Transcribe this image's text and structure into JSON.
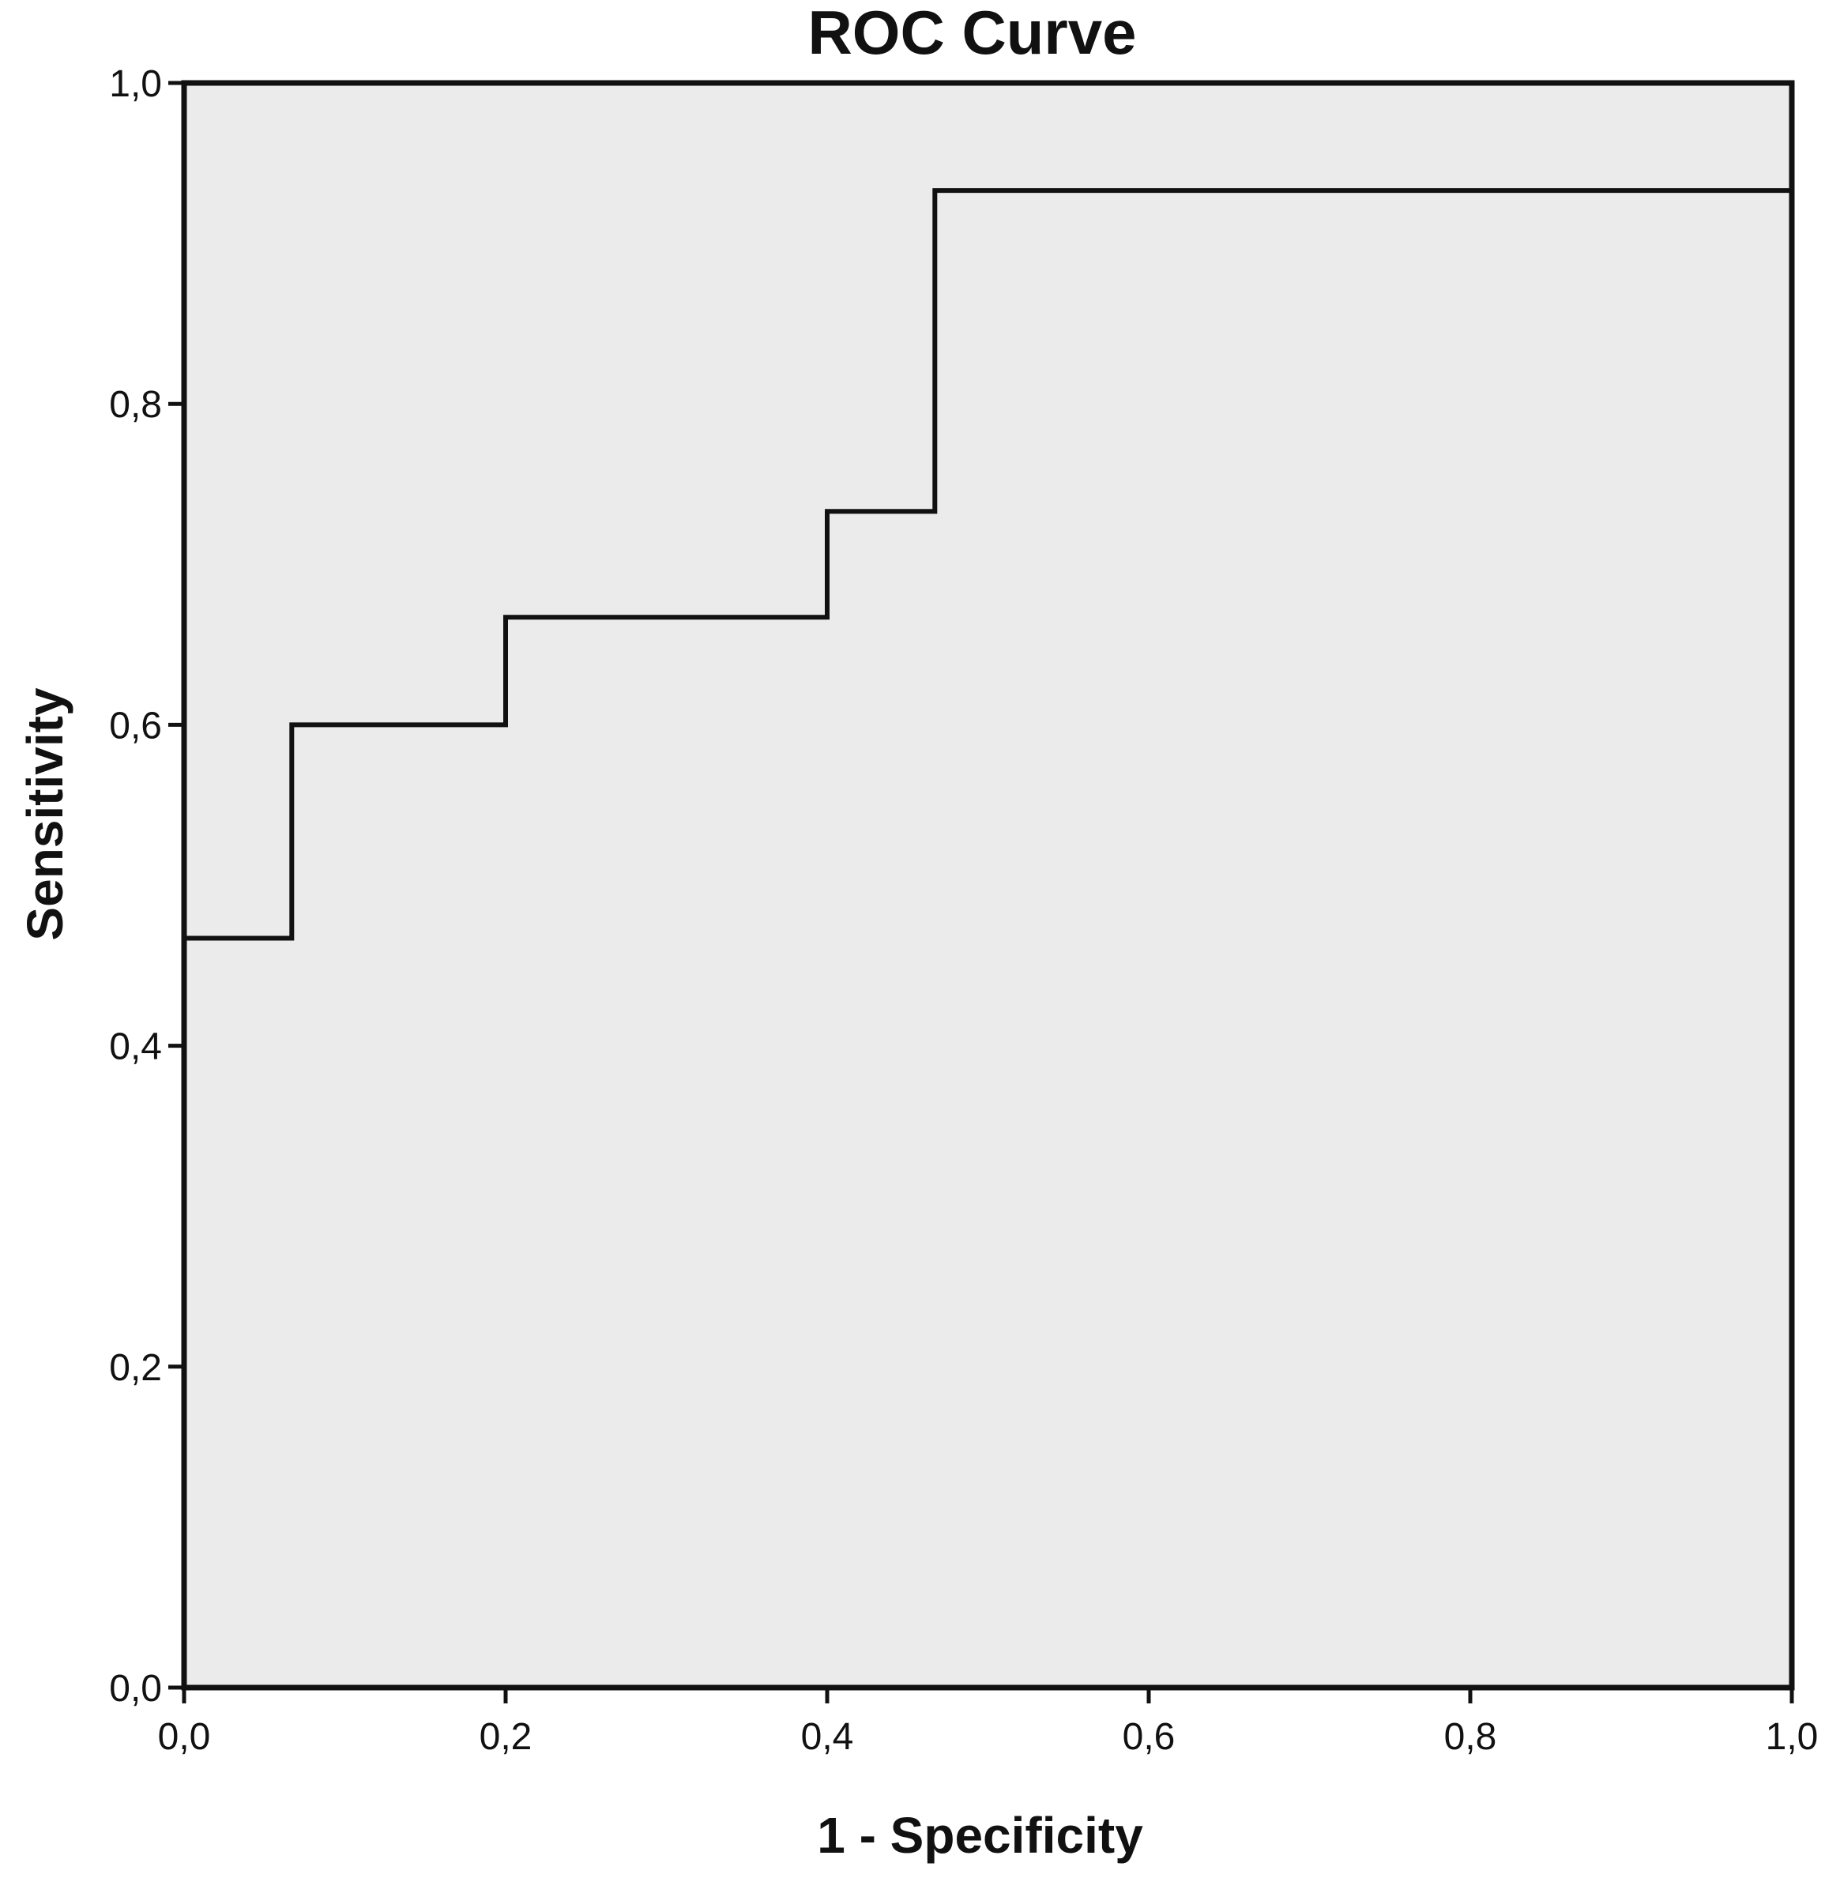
{
  "chart_data": {
    "type": "line",
    "title": "ROC Curve",
    "xlabel": "1 - Specificity",
    "ylabel": "Sensitivity",
    "xlim": [
      0,
      1
    ],
    "ylim": [
      0,
      1
    ],
    "x_ticks": [
      {
        "value": 0.0,
        "label": "0,0"
      },
      {
        "value": 0.2,
        "label": "0,2"
      },
      {
        "value": 0.4,
        "label": "0,4"
      },
      {
        "value": 0.6,
        "label": "0,6"
      },
      {
        "value": 0.8,
        "label": "0,8"
      },
      {
        "value": 1.0,
        "label": "1,0"
      }
    ],
    "y_ticks": [
      {
        "value": 0.0,
        "label": "0,0"
      },
      {
        "value": 0.2,
        "label": "0,2"
      },
      {
        "value": 0.4,
        "label": "0,4"
      },
      {
        "value": 0.6,
        "label": "0,6"
      },
      {
        "value": 0.8,
        "label": "0,8"
      },
      {
        "value": 1.0,
        "label": "1,0"
      }
    ],
    "grid": false,
    "legend": "none",
    "background_color": "#ebebeb",
    "line_color": "#111111",
    "series": [
      {
        "step": true,
        "points": [
          {
            "x": 0.0,
            "y": 0.0
          },
          {
            "x": 0.0,
            "y": 0.467
          },
          {
            "x": 0.067,
            "y": 0.467
          },
          {
            "x": 0.067,
            "y": 0.6
          },
          {
            "x": 0.2,
            "y": 0.6
          },
          {
            "x": 0.2,
            "y": 0.667
          },
          {
            "x": 0.4,
            "y": 0.667
          },
          {
            "x": 0.4,
            "y": 0.733
          },
          {
            "x": 0.467,
            "y": 0.733
          },
          {
            "x": 0.467,
            "y": 0.933
          },
          {
            "x": 1.0,
            "y": 0.933
          },
          {
            "x": 1.0,
            "y": 1.0
          }
        ]
      }
    ]
  }
}
